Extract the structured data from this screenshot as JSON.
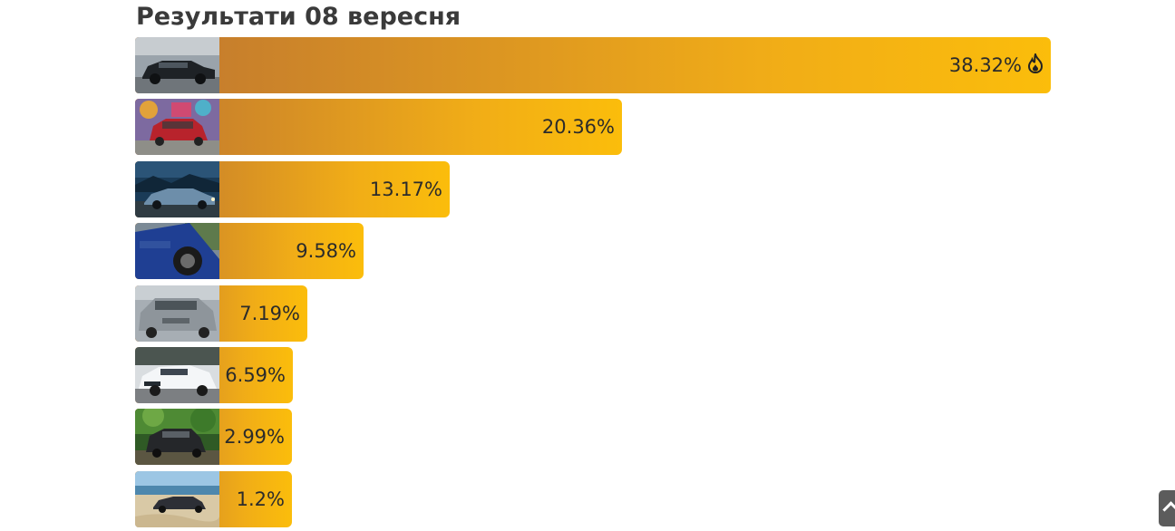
{
  "title": "Результати 08 вересня",
  "chart_data": {
    "type": "bar",
    "orientation": "horizontal",
    "title": "Результати 08 вересня",
    "xlim": [
      0,
      38.32
    ],
    "grid": false,
    "legend": "none",
    "bars": [
      {
        "value": 38.32,
        "label": "38.32%",
        "badge": "fire-icon",
        "thumb": "dark-sedan"
      },
      {
        "value": 20.36,
        "label": "20.36%",
        "thumb": "red-hatchback"
      },
      {
        "value": 13.17,
        "label": "13.17%",
        "thumb": "blue-sedan-night"
      },
      {
        "value": 9.58,
        "label": "9.58%",
        "thumb": "blue-car-closeup"
      },
      {
        "value": 7.19,
        "label": "7.19%",
        "thumb": "silver-crossover"
      },
      {
        "value": 6.59,
        "label": "6.59%",
        "thumb": "white-sedan"
      },
      {
        "value": 2.99,
        "label": "2.99%",
        "thumb": "dark-hatchback-forest"
      },
      {
        "value": 1.2,
        "label": "1.2%",
        "thumb": "car-on-beach"
      }
    ],
    "colors": {
      "gradient_start": "#c1782f",
      "gradient_end": "#fbbd0b",
      "label": "#2b2b2b"
    }
  },
  "scroll_top": {
    "icon": "chevron-up-icon"
  }
}
